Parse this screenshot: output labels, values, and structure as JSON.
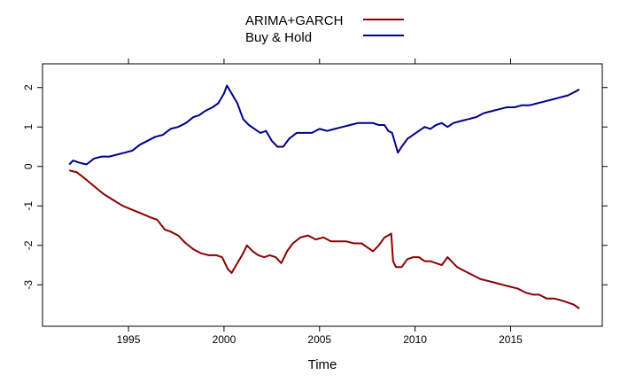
{
  "chart_data": {
    "type": "line",
    "title": "",
    "xlabel": "Time",
    "ylabel": "",
    "xlim": [
      1990.5,
      2019.8
    ],
    "ylim": [
      -4.05,
      2.6
    ],
    "x_ticks": [
      1995,
      2000,
      2005,
      2010,
      2015
    ],
    "x_tick_labels": [
      "1995",
      "2000",
      "2005",
      "2010",
      "2015"
    ],
    "y_ticks": [
      -3,
      -2,
      -1,
      0,
      1,
      2
    ],
    "y_tick_labels": [
      "-3",
      "-2",
      "-1",
      "0",
      "1",
      "2"
    ],
    "grid": false,
    "legend_position": "top-center",
    "series": [
      {
        "name": "ARIMA+GARCH",
        "color": "#8b0000",
        "x": [
          1991.9,
          1992.3,
          1992.7,
          1993.2,
          1993.7,
          1994.2,
          1994.7,
          1995.2,
          1995.7,
          1996.2,
          1996.5,
          1996.9,
          1997.2,
          1997.6,
          1998.0,
          1998.4,
          1998.8,
          1999.2,
          1999.6,
          1999.9,
          2000.2,
          2000.4,
          2000.7,
          2001.0,
          2001.2,
          2001.5,
          2001.8,
          2002.1,
          2002.4,
          2002.7,
          2003.0,
          2003.3,
          2003.6,
          2004.0,
          2004.4,
          2004.8,
          2005.2,
          2005.6,
          2006.0,
          2006.4,
          2006.8,
          2007.2,
          2007.5,
          2007.8,
          2008.1,
          2008.4,
          2008.6,
          2008.75,
          2008.85,
          2009.0,
          2009.3,
          2009.6,
          2009.9,
          2010.2,
          2010.5,
          2010.8,
          2011.1,
          2011.4,
          2011.7,
          2011.9,
          2012.2,
          2012.6,
          2013.0,
          2013.4,
          2013.8,
          2014.2,
          2014.6,
          2015.0,
          2015.4,
          2015.8,
          2016.2,
          2016.5,
          2016.9,
          2017.3,
          2017.7,
          2018.0,
          2018.3,
          2018.6
        ],
        "y": [
          -0.1,
          -0.15,
          -0.3,
          -0.5,
          -0.7,
          -0.85,
          -1.0,
          -1.1,
          -1.2,
          -1.3,
          -1.35,
          -1.6,
          -1.65,
          -1.75,
          -1.95,
          -2.1,
          -2.2,
          -2.25,
          -2.25,
          -2.3,
          -2.6,
          -2.7,
          -2.45,
          -2.2,
          -2.0,
          -2.15,
          -2.25,
          -2.3,
          -2.25,
          -2.3,
          -2.45,
          -2.15,
          -1.95,
          -1.8,
          -1.75,
          -1.85,
          -1.8,
          -1.9,
          -1.9,
          -1.9,
          -1.95,
          -1.95,
          -2.05,
          -2.15,
          -2.0,
          -1.8,
          -1.75,
          -1.7,
          -2.4,
          -2.55,
          -2.55,
          -2.35,
          -2.3,
          -2.3,
          -2.4,
          -2.4,
          -2.45,
          -2.5,
          -2.3,
          -2.4,
          -2.55,
          -2.65,
          -2.75,
          -2.85,
          -2.9,
          -2.95,
          -3.0,
          -3.05,
          -3.1,
          -3.2,
          -3.25,
          -3.25,
          -3.35,
          -3.35,
          -3.4,
          -3.45,
          -3.5,
          -3.6
        ]
      },
      {
        "name": "Buy & Hold",
        "color": "#00008b",
        "x": [
          1991.9,
          1992.1,
          1992.4,
          1992.8,
          1993.2,
          1993.6,
          1994.0,
          1994.4,
          1994.8,
          1995.2,
          1995.6,
          1996.0,
          1996.4,
          1996.8,
          1997.2,
          1997.6,
          1998.0,
          1998.4,
          1998.7,
          1999.0,
          1999.4,
          1999.7,
          2000.0,
          2000.15,
          2000.4,
          2000.7,
          2001.0,
          2001.3,
          2001.6,
          2001.9,
          2002.2,
          2002.5,
          2002.8,
          2003.1,
          2003.4,
          2003.8,
          2004.2,
          2004.6,
          2005.0,
          2005.4,
          2005.8,
          2006.2,
          2006.6,
          2007.0,
          2007.4,
          2007.8,
          2008.1,
          2008.4,
          2008.6,
          2008.8,
          2008.95,
          2009.1,
          2009.3,
          2009.6,
          2009.9,
          2010.2,
          2010.5,
          2010.8,
          2011.1,
          2011.4,
          2011.7,
          2012.0,
          2012.4,
          2012.8,
          2013.2,
          2013.6,
          2014.0,
          2014.4,
          2014.8,
          2015.2,
          2015.6,
          2016.0,
          2016.4,
          2016.8,
          2017.2,
          2017.6,
          2018.0,
          2018.4,
          2018.6
        ],
        "y": [
          0.05,
          0.15,
          0.1,
          0.05,
          0.2,
          0.25,
          0.25,
          0.3,
          0.35,
          0.4,
          0.55,
          0.65,
          0.75,
          0.8,
          0.95,
          1.0,
          1.1,
          1.25,
          1.3,
          1.4,
          1.5,
          1.6,
          1.85,
          2.05,
          1.85,
          1.6,
          1.2,
          1.05,
          0.95,
          0.85,
          0.9,
          0.65,
          0.5,
          0.5,
          0.7,
          0.85,
          0.85,
          0.85,
          0.95,
          0.9,
          0.95,
          1.0,
          1.05,
          1.1,
          1.1,
          1.1,
          1.05,
          1.05,
          0.9,
          0.85,
          0.6,
          0.35,
          0.5,
          0.7,
          0.8,
          0.9,
          1.0,
          0.95,
          1.05,
          1.1,
          1.0,
          1.1,
          1.15,
          1.2,
          1.25,
          1.35,
          1.4,
          1.45,
          1.5,
          1.5,
          1.55,
          1.55,
          1.6,
          1.65,
          1.7,
          1.75,
          1.8,
          1.9,
          1.95
        ]
      }
    ]
  }
}
